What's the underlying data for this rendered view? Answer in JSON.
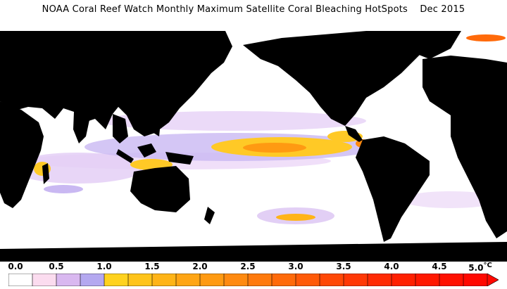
{
  "title": "NOAA Coral Reef Watch Monthly Maximum Satellite Coral Bleaching HotSpots    Dec 2015",
  "legend": {
    "ticks": [
      "0.0",
      "0.5",
      "1.0",
      "1.5",
      "2.0",
      "2.5",
      "3.0",
      "3.5",
      "4.0",
      "4.5",
      "5.0"
    ],
    "unit": "°C",
    "colors": [
      "#ffffff",
      "#fbdcef",
      "#d9b8f0",
      "#b4a8f0",
      "#ffd21e",
      "#ffc41a",
      "#ffb417",
      "#ffa514",
      "#ff9a12",
      "#ff8a10",
      "#ff7a0d",
      "#ff6a0a",
      "#ff5a08",
      "#ff4806",
      "#ff3805",
      "#ff2a03",
      "#ff2000",
      "#ff1800",
      "#ff1000",
      "#ff0800"
    ]
  },
  "map": {
    "land_color": "#000000",
    "ocean_color": "#ffffff"
  }
}
